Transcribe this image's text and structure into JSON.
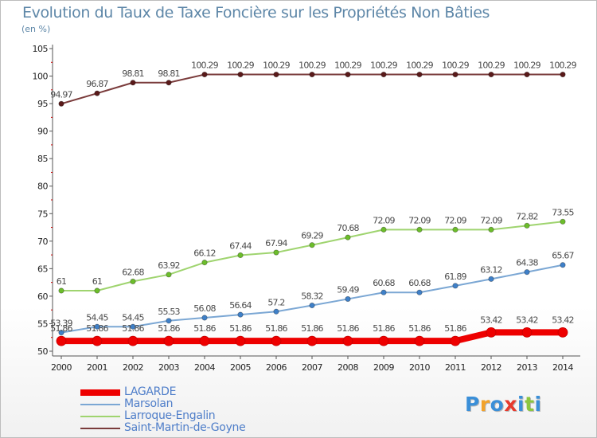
{
  "header": {
    "title": "Evolution du Taux de Taxe Foncière sur les Propriétés Non Bâties",
    "unit": "(en %)"
  },
  "brand": {
    "letters": [
      "P",
      "r",
      "o",
      "x",
      "i",
      "t",
      "i"
    ],
    "colors": [
      "#3a8fd8",
      "#f2a22a",
      "#3a8fd8",
      "#e63a2e",
      "#3a8fd8",
      "#8cc63f",
      "#3a8fd8"
    ]
  },
  "chart_data": {
    "type": "line",
    "title": "Evolution du Taux de Taxe Foncière sur les Propriétés Non Bâties",
    "ylabel": "(en %)",
    "xlabel": "",
    "ylim": [
      50,
      105
    ],
    "yticks": [
      50,
      55,
      60,
      65,
      70,
      75,
      80,
      85,
      90,
      95,
      100,
      105
    ],
    "x": [
      "2000",
      "2001",
      "2002",
      "2003",
      "2004",
      "2005",
      "2006",
      "2007",
      "2008",
      "2009",
      "2010",
      "2011",
      "2012",
      "2013",
      "2014"
    ],
    "grid": false,
    "legend_position": "bottom-left",
    "series": [
      {
        "name": "Saint-Martin-de-Goyne",
        "color": "#7a3b3b",
        "marker": "#5a1a1a",
        "values": [
          94.97,
          96.87,
          98.81,
          98.81,
          100.29,
          100.29,
          100.29,
          100.29,
          100.29,
          100.29,
          100.29,
          100.29,
          100.29,
          100.29,
          100.29
        ],
        "labels": [
          "94.97",
          "96.87",
          "98.81",
          "98.81",
          "100.29",
          "100.29",
          "100.29",
          "100.29",
          "100.29",
          "100.29",
          "100.29",
          "100.29",
          "100.29",
          "100.29",
          "100.29"
        ]
      },
      {
        "name": "Larroque-Engalin",
        "color": "#9fd46f",
        "marker": "#6cbd2b",
        "values": [
          61,
          61,
          62.68,
          63.92,
          66.12,
          67.44,
          67.94,
          69.29,
          70.68,
          72.09,
          72.09,
          72.09,
          72.09,
          72.82,
          73.55
        ],
        "labels": [
          "61",
          "61",
          "62.68",
          "63.92",
          "66.12",
          "67.44",
          "67.94",
          "69.29",
          "70.68",
          "72.09",
          "72.09",
          "72.09",
          "72.09",
          "72.82",
          "73.55"
        ]
      },
      {
        "name": "Marsolan",
        "color": "#7ba7d4",
        "marker": "#3f80c8",
        "values": [
          53.39,
          54.45,
          54.45,
          55.53,
          56.08,
          56.64,
          57.2,
          58.32,
          59.49,
          60.68,
          60.68,
          61.89,
          63.12,
          64.38,
          65.67
        ],
        "labels": [
          "53.39",
          "54.45",
          "54.45",
          "55.53",
          "56.08",
          "56.64",
          "57.2",
          "58.32",
          "59.49",
          "60.68",
          "60.68",
          "61.89",
          "63.12",
          "64.38",
          "65.67"
        ]
      },
      {
        "name": "LAGARDE",
        "color": "#ee0000",
        "marker": "#ee0000",
        "values": [
          51.86,
          51.86,
          51.86,
          51.86,
          51.86,
          51.86,
          51.86,
          51.86,
          51.86,
          51.86,
          51.86,
          51.86,
          53.42,
          53.42,
          53.42
        ],
        "labels": [
          "51.86",
          "51.86",
          "51.86",
          "51.86",
          "51.86",
          "51.86",
          "51.86",
          "51.86",
          "51.86",
          "51.86",
          "51.86",
          "51.86",
          "53.42",
          "53.42",
          "53.42"
        ]
      }
    ],
    "legend": [
      "LAGARDE",
      "Marsolan",
      "Larroque-Engalin",
      "Saint-Martin-de-Goyne"
    ]
  }
}
